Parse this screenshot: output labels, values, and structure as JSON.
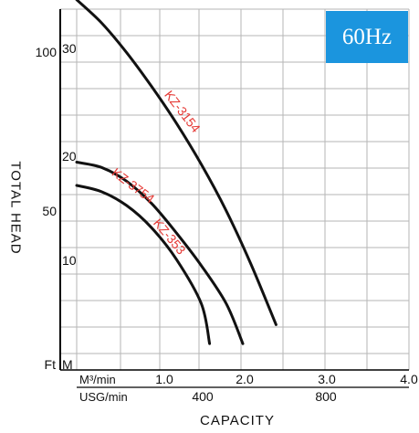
{
  "badge": "60Hz",
  "chart_data": {
    "type": "line",
    "xlabel": "CAPACITY",
    "ylabel": "TOTAL HEAD",
    "x_unit_primary": "M³/min",
    "x_unit_secondary": "USG/min",
    "y_unit_primary": "M",
    "y_unit_secondary": "Ft",
    "xlim": [
      0,
      4.0
    ],
    "ylim": [
      0,
      34
    ],
    "x_ticks_primary": [
      "1.0",
      "2.0",
      "3.0",
      "4.0"
    ],
    "x_ticks_secondary": [
      "400",
      "800"
    ],
    "y_ticks_primary": [
      "10",
      "20",
      "30"
    ],
    "y_ticks_secondary": [
      "50",
      "100"
    ],
    "grid": true,
    "series": [
      {
        "name": "KZ-3154",
        "color": "#e53935",
        "x": [
          0.0,
          0.3,
          0.6,
          0.9,
          1.2,
          1.5,
          1.8,
          2.1,
          2.4
        ],
        "y": [
          34.4,
          32.2,
          29.4,
          26.2,
          22.7,
          18.8,
          14.4,
          9.3,
          3.6
        ]
      },
      {
        "name": "KZ-3754",
        "color": "#e53935",
        "x": [
          0.0,
          0.3,
          0.6,
          0.9,
          1.2,
          1.5,
          1.8,
          2.0
        ],
        "y": [
          19.0,
          18.5,
          17.2,
          15.1,
          12.3,
          9.2,
          5.6,
          1.8
        ]
      },
      {
        "name": "KZ-353",
        "color": "#e53935",
        "x": [
          0.0,
          0.3,
          0.6,
          0.9,
          1.2,
          1.5,
          1.6
        ],
        "y": [
          16.8,
          16.2,
          14.9,
          12.8,
          9.8,
          5.6,
          1.8
        ]
      }
    ]
  }
}
